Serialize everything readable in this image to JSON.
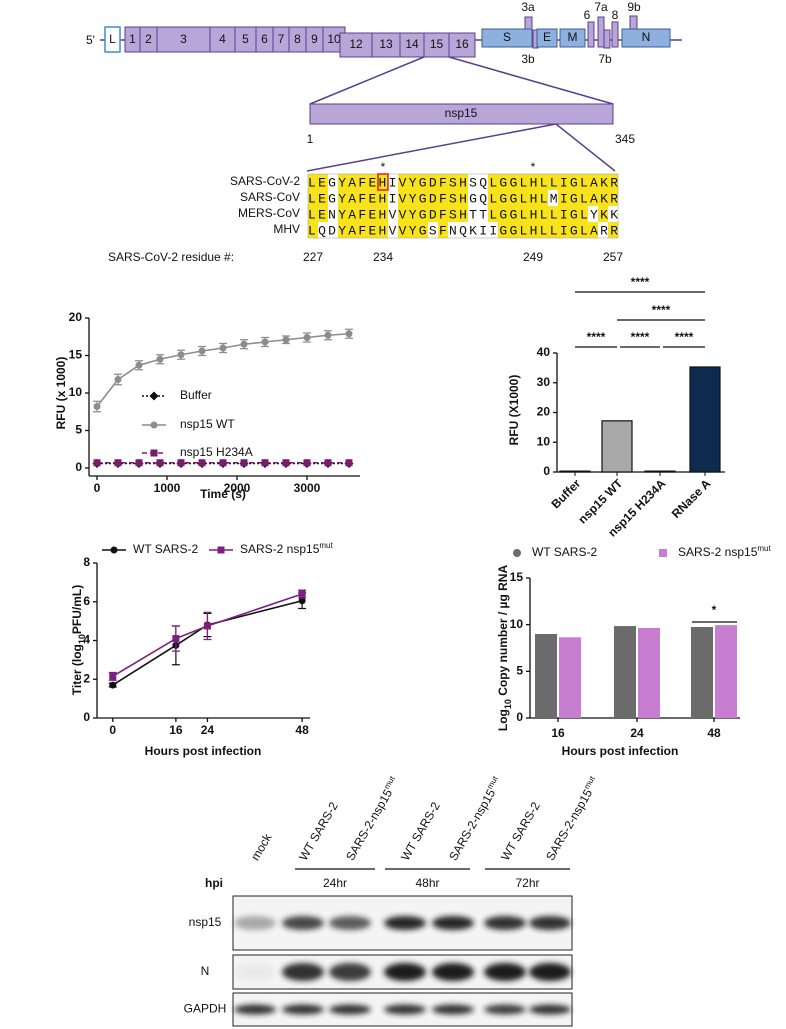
{
  "genome": {
    "five_prime": "5'",
    "leader": "L",
    "orf1a": [
      "1",
      "2",
      "3",
      "4",
      "5",
      "6",
      "7",
      "8",
      "9",
      "10"
    ],
    "orf1b": [
      "12",
      "13",
      "14",
      "15",
      "16"
    ],
    "structural": [
      "S",
      "E",
      "M",
      "N"
    ],
    "accessory_top": [
      "3a",
      "6",
      "7a",
      "8",
      "9b"
    ],
    "accessory_bottom": [
      "3b",
      "7b"
    ],
    "zoom": {
      "label": "nsp15",
      "start": 1,
      "end": 345
    }
  },
  "alignment": {
    "rows": [
      {
        "name": "SARS-CoV-2",
        "seq": "LEGYAFEHIVYGDFSHSQLGGLHLLIGLAKR"
      },
      {
        "name": "SARS-CoV",
        "seq": "LEGYAFEHIVYGDFSHGQLGGLHLMIGLAKR"
      },
      {
        "name": "MERS-CoV",
        "seq": "LENYAFEHVVYGDFSHTTLGGLHLLIGLYKK"
      },
      {
        "name": "MHV",
        "seq": "LQDYAFEHVVYGSFNQKIIGGLHLLIGLARR"
      }
    ],
    "asterisk": "*",
    "residue_label": "SARS-CoV-2 residue #:",
    "residue_numbers": [
      227,
      234,
      249,
      257
    ]
  },
  "chart_data": [
    {
      "type": "line",
      "xlabel": "Time (s)",
      "ylabel": [
        "RFU (x 1000)"
      ],
      "x": [
        0,
        300,
        600,
        900,
        1200,
        1500,
        1800,
        2100,
        2400,
        2700,
        3000,
        3300,
        3600
      ],
      "xlim": [
        0,
        3600
      ],
      "xticks": [
        0,
        1000,
        2000,
        3000
      ],
      "ylim": [
        0,
        20
      ],
      "yticks": [
        0,
        5,
        10,
        15,
        20
      ],
      "series": [
        {
          "name": "Buffer",
          "color": "#111111",
          "dash": "dotted",
          "marker": "diamond",
          "values": [
            0.6,
            0.6,
            0.6,
            0.6,
            0.6,
            0.6,
            0.6,
            0.6,
            0.6,
            0.6,
            0.6,
            0.6,
            0.6
          ]
        },
        {
          "name": "nsp15 WT",
          "color": "#8c8c8c",
          "dash": "solid",
          "marker": "circle",
          "values": [
            8.2,
            11.8,
            13.7,
            14.5,
            15.1,
            15.6,
            16.0,
            16.5,
            16.8,
            17.1,
            17.4,
            17.7,
            17.9
          ],
          "errors": [
            0.7,
            0.7,
            0.6,
            0.6,
            0.6,
            0.6,
            0.6,
            0.6,
            0.6,
            0.5,
            0.6,
            0.6,
            0.6
          ]
        },
        {
          "name": "nsp15 H234A",
          "color": "#7b1a6e",
          "dash": "dashed",
          "marker": "square",
          "values": [
            0.7,
            0.7,
            0.7,
            0.7,
            0.7,
            0.7,
            0.7,
            0.7,
            0.7,
            0.7,
            0.7,
            0.7,
            0.7
          ]
        }
      ]
    },
    {
      "type": "bar",
      "ylabel": [
        "RFU (X1000)"
      ],
      "categories": [
        "Buffer",
        "nsp15 WT",
        "nsp15 H234A",
        "RNase A"
      ],
      "values": [
        0.3,
        17.2,
        0.3,
        35.3
      ],
      "colors": [
        "#ffffff",
        "#a8a8a8",
        "#ffffff",
        "#0d2a4f"
      ],
      "ylim": [
        0,
        40
      ],
      "yticks": [
        0,
        10,
        20,
        30,
        40
      ],
      "significance": [
        "****",
        "****",
        "****",
        "****",
        "****"
      ]
    },
    {
      "type": "line",
      "xlabel": "Hours post infection",
      "ylabel": [
        "Titer (log",
        "10",
        "PFU/mL)"
      ],
      "x": [
        0,
        16,
        24,
        48
      ],
      "xlim": [
        -4,
        50
      ],
      "xticks": [
        0,
        16,
        24,
        48
      ],
      "ylim": [
        0,
        8
      ],
      "yticks": [
        0,
        2,
        4,
        6,
        8
      ],
      "series": [
        {
          "name": "WT SARS-2",
          "color": "#111111",
          "dash": "solid",
          "marker": "circle",
          "values": [
            1.7,
            3.75,
            4.8,
            6.05
          ],
          "errors": [
            0.1,
            1.0,
            0.6,
            0.4
          ]
        },
        {
          "name": "SARS-2 nsp15",
          "name_sup": "mut",
          "color": "#7d1f80",
          "dash": "solid",
          "marker": "square",
          "values": [
            2.15,
            4.1,
            4.75,
            6.4
          ],
          "errors": [
            0.2,
            0.65,
            0.7,
            0.2
          ]
        }
      ]
    },
    {
      "type": "grouped-bar",
      "xlabel": "Hours post infection",
      "ylabel": [
        "Log",
        "10",
        " Copy number / µg RNA"
      ],
      "categories": [
        "16",
        "24",
        "48"
      ],
      "ylim": [
        0,
        15
      ],
      "yticks": [
        0,
        5,
        10,
        15
      ],
      "series": [
        {
          "name": "WT SARS-2",
          "color": "#6b6b6b",
          "marker": "circle",
          "values": [
            9.0,
            9.85,
            9.75
          ]
        },
        {
          "name": "SARS-2 nsp15",
          "name_sup": "mut",
          "color": "#c77dd0",
          "marker": "square",
          "values": [
            8.65,
            9.65,
            9.95
          ]
        }
      ],
      "significance": [
        "*"
      ]
    }
  ],
  "blot": {
    "lanes": [
      {
        "label": "mock"
      },
      {
        "label": "WT SARS-2"
      },
      {
        "label": "SARS-2-nsp15",
        "sup": "mut"
      },
      {
        "label": "WT SARS-2"
      },
      {
        "label": "SARS-2-nsp15",
        "sup": "mut"
      },
      {
        "label": "WT SARS-2"
      },
      {
        "label": "SARS-2-nsp15",
        "sup": "mut"
      }
    ],
    "hpi": "hpi",
    "timepoints": [
      "24hr",
      "48hr",
      "72hr"
    ],
    "rows": [
      "nsp15",
      "N",
      "GAPDH"
    ]
  }
}
